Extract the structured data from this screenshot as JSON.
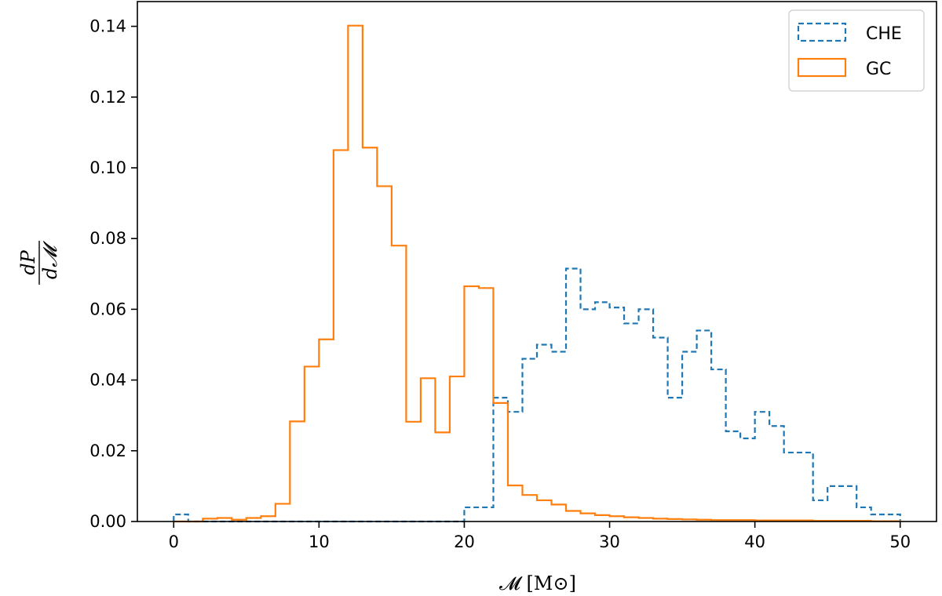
{
  "chart_data": {
    "type": "histogram",
    "xlabel": "𝓜 [M⊙]",
    "ylabel_num": "dP",
    "ylabel_den": "d𝓜",
    "xlim": [
      -2.5,
      52.5
    ],
    "ylim": [
      0,
      0.147
    ],
    "xticks": [
      0,
      10,
      20,
      30,
      40,
      50
    ],
    "xtick_labels": [
      "0",
      "10",
      "20",
      "30",
      "40",
      "50"
    ],
    "yticks": [
      0,
      0.02,
      0.04,
      0.06,
      0.08,
      0.1,
      0.12,
      0.14
    ],
    "ytick_labels": [
      "0.00",
      "0.02",
      "0.04",
      "0.06",
      "0.08",
      "0.10",
      "0.12",
      "0.14"
    ],
    "legend_position": "top-right",
    "bin_edges": [
      0,
      1,
      2,
      3,
      4,
      5,
      6,
      7,
      8,
      9,
      10,
      11,
      12,
      13,
      14,
      15,
      16,
      17,
      18,
      19,
      20,
      21,
      22,
      23,
      24,
      25,
      26,
      27,
      28,
      29,
      30,
      31,
      32,
      33,
      34,
      35,
      36,
      37,
      38,
      39,
      40,
      41,
      42,
      43,
      44,
      45,
      46,
      47,
      48,
      49,
      50
    ],
    "series": [
      {
        "name": "CHE",
        "color": "#1f77b4",
        "linestyle": "dashed",
        "values": [
          0.002,
          0,
          0,
          0,
          0,
          0,
          0,
          0,
          0,
          0,
          0,
          0,
          0,
          0,
          0,
          0,
          0,
          0,
          0,
          0,
          0.004,
          0.004,
          0.035,
          0.031,
          0.046,
          0.05,
          0.048,
          0.0715,
          0.06,
          0.062,
          0.0605,
          0.056,
          0.06,
          0.052,
          0.035,
          0.048,
          0.054,
          0.043,
          0.0255,
          0.0235,
          0.031,
          0.027,
          0.0195,
          0.0195,
          0.006,
          0.01,
          0.01,
          0.004,
          0.002,
          0.002
        ]
      },
      {
        "name": "GC",
        "color": "#ff7f0e",
        "linestyle": "solid",
        "values": [
          0,
          0,
          0.0008,
          0.001,
          0.0005,
          0.001,
          0.0015,
          0.005,
          0.0283,
          0.0438,
          0.0515,
          0.105,
          0.1402,
          0.1057,
          0.0948,
          0.078,
          0.0282,
          0.0405,
          0.0252,
          0.041,
          0.0665,
          0.066,
          0.0335,
          0.0102,
          0.0075,
          0.006,
          0.0048,
          0.003,
          0.0023,
          0.0018,
          0.0015,
          0.0012,
          0.001,
          0.0008,
          0.0007,
          0.0006,
          0.0005,
          0.0004,
          0.0004,
          0.0004,
          0.0003,
          0.0003,
          0.0003,
          0.0003,
          0.0002,
          0.0002,
          0.0002,
          0.0002,
          0.0001,
          0.0001
        ]
      }
    ]
  }
}
